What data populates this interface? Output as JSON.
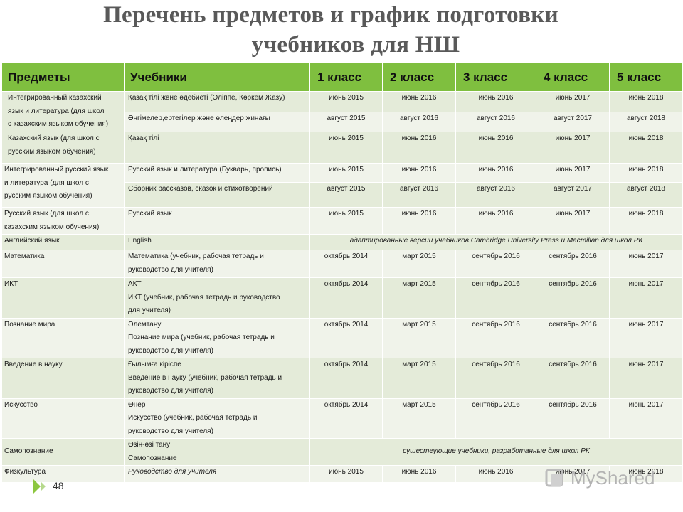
{
  "title": {
    "line1": "Перечень предметов и график подготовки",
    "line2": "учебников для НШ"
  },
  "table": {
    "headers": [
      "Предметы",
      "Учебники",
      "1 класс",
      "2 класс",
      "3 класс",
      "4 класс",
      "5 класс"
    ],
    "rows": [
      {
        "subject": [
          "Интегрированный казахский",
          "язык и литература  (для школ",
          "с казахским языком обучения)"
        ],
        "textbook": [
          "Қазақ тілі және әдебиеті (Әліппе, Көркем Жазу)"
        ],
        "grades": [
          "июнь 2015",
          "июнь 2016",
          "июнь 2016",
          "июнь 2017",
          "июнь 2018"
        ]
      },
      {
        "textbook": [
          "Әңгімелер,ертегілер және өлеңдер жинағы"
        ],
        "grades": [
          "август 2015",
          "август 2016",
          "август  2016",
          "август  2017",
          "август 2018"
        ]
      },
      {
        "subject": [
          "Казахский язык (для школ с",
          "русским языком обучения)"
        ],
        "textbook": [
          " Қазақ тілі"
        ],
        "grades": [
          "июнь 2015",
          "июнь 2016",
          "июнь 2016",
          "июнь 2017",
          "июнь 2018"
        ]
      },
      {
        "subject": [
          "Интегрированный русский язык",
          "и литература (для школ с",
          "русским языком обучения)"
        ],
        "textbook": [
          "Русский язык и литература (Букварь, пропись)"
        ],
        "grades": [
          "июнь 2015",
          "июнь 2016",
          "июнь 2016",
          "июнь 2017",
          "июнь 2018"
        ]
      },
      {
        "textbook": [
          "Сборник рассказов, сказок и стихотворений"
        ],
        "grades": [
          "август 2015",
          "август 2016",
          "август  2016",
          "август  2017",
          "август 2018"
        ]
      },
      {
        "subject": [
          "Русский язык (для школ с",
          "казахским языком обучения)"
        ],
        "textbook": [
          "Русский язык"
        ],
        "grades": [
          "июнь 2015",
          "июнь 2016",
          "июнь 2016",
          "июнь 2017",
          "июнь 2018"
        ]
      },
      {
        "subject": [
          "Английский язык"
        ],
        "textbook": [
          "English"
        ],
        "note": "адаптированные версии учебников Cambridge University  Press и Macmillan  для школ РК"
      },
      {
        "subject": [
          "Математика"
        ],
        "textbook": [
          "Математика (учебник, рабочая тетрадь и",
          "руководство для учителя)"
        ],
        "grades": [
          "октябрь 2014",
          "март 2015",
          "сентябрь  2016",
          "сентябрь 2016",
          "июнь 2017"
        ]
      },
      {
        "subject": [
          "ИКТ"
        ],
        "textbook": [
          "АКТ",
          "ИКТ (учебник, рабочая тетрадь и руководство",
          "для учителя)"
        ],
        "grades": [
          "октябрь 2014",
          "март 2015",
          "сентябрь  2016",
          "сентябрь 2016",
          "июнь 2017"
        ]
      },
      {
        "subject": [
          "Познание мира"
        ],
        "textbook": [
          "Әлемтану",
          "Познание мира (учебник, рабочая тетрадь и",
          "руководство для учителя)"
        ],
        "grades": [
          "октябрь 2014",
          "март 2015",
          "сентябрь 2016",
          "сентябрь 2016",
          "июнь 2017"
        ]
      },
      {
        "subject": [
          "Введение в науку"
        ],
        "textbook": [
          "Ғылымға кіріспе",
          "Введение в науку (учебник, рабочая тетрадь и",
          "руководство для учителя)"
        ],
        "grades": [
          "октябрь 2014",
          "март 2015",
          "сентябрь 2016",
          "сентябрь 2016",
          "июнь 2017"
        ]
      },
      {
        "subject": [
          "Искусство"
        ],
        "textbook": [
          "Өнер",
          "Искусство  (учебник, рабочая тетрадь и",
          "руководство для учителя)"
        ],
        "grades": [
          "октябрь 2014",
          "март 2015",
          "сентябрь 2016",
          "сентябрь 2016",
          "июнь 2017"
        ]
      },
      {
        "subject": [
          "Самопознание"
        ],
        "textbook": [
          "Өзін-өзі тану",
          "Самопознание"
        ],
        "note": "сущестеующие  учебники, разработанные для школ РК"
      },
      {
        "subject": [
          "Физкультура"
        ],
        "textbook": [
          "Руководство для учителя"
        ],
        "grades": [
          "июнь 2015",
          "июнь 2016",
          "июнь 2016",
          "июнь 2017",
          "июнь 2018"
        ]
      }
    ]
  },
  "footer": {
    "page_number": "48",
    "watermark": "MyShared"
  }
}
